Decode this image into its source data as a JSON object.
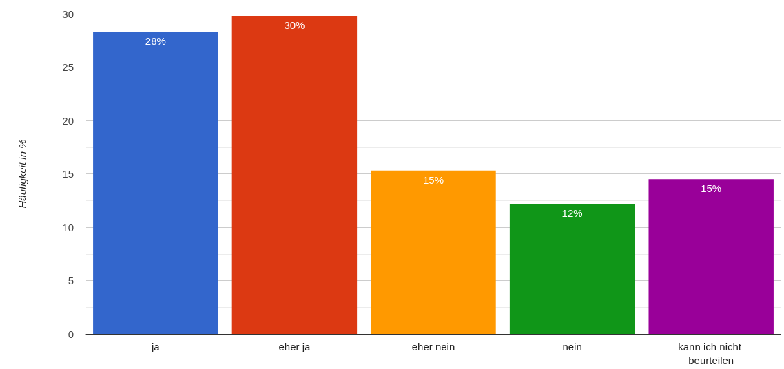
{
  "chart_data": {
    "type": "bar",
    "ylabel": "Häufigkeit in %",
    "categories": [
      "ja",
      "eher ja",
      "eher nein",
      "nein",
      "kann ich nicht beurteilen"
    ],
    "values": [
      28.3,
      29.8,
      15.3,
      12.2,
      14.5
    ],
    "colors": [
      "#3366cc",
      "#dc3912",
      "#ff9900",
      "#109618",
      "#990099"
    ],
    "value_labels": [
      "28%",
      "30%",
      "15%",
      "12%",
      "15%"
    ],
    "ylim": [
      0,
      30
    ],
    "yticks": [
      0,
      5,
      10,
      15,
      20,
      25,
      30
    ],
    "grid": "y"
  }
}
